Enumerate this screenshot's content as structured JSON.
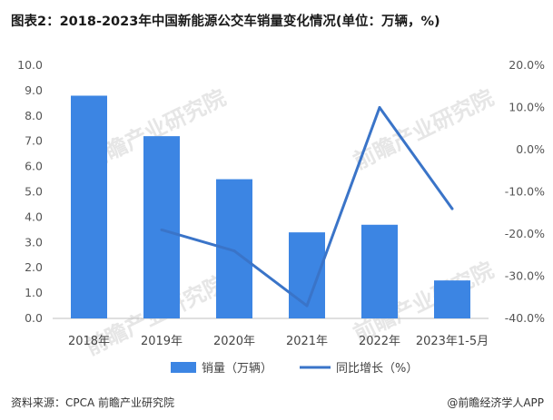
{
  "title": "图表2：2018-2023年中国新能源公交车销量变化情况(单位：万辆，%)",
  "source": "资料来源：CPCA 前瞻产业研究院",
  "brand": "@前瞻经济学人APP",
  "watermark": "前瞻产业研究院",
  "colors": {
    "bar": "#3C85E3",
    "line": "#3A74C8"
  },
  "chart_data": {
    "type": "bar+line",
    "title": "图表2：2018-2023年中国新能源公交车销量变化情况(单位：万辆，%)",
    "categories": [
      "2018年",
      "2019年",
      "2020年",
      "2021年",
      "2022年",
      "2023年1-5月"
    ],
    "series": [
      {
        "name": "销量（万辆）",
        "type": "bar",
        "axis": "left",
        "values": [
          8.8,
          7.2,
          5.5,
          3.4,
          3.7,
          1.5
        ]
      },
      {
        "name": "同比增长（%）",
        "type": "line",
        "axis": "right",
        "values": [
          null,
          -19.0,
          -24.0,
          -37.0,
          10.0,
          -14.0
        ]
      }
    ],
    "y_left": {
      "min": 0,
      "max": 10,
      "step": 1,
      "ticks": [
        "0.0",
        "1.0",
        "2.0",
        "3.0",
        "4.0",
        "5.0",
        "6.0",
        "7.0",
        "8.0",
        "9.0",
        "10.0"
      ]
    },
    "y_right": {
      "min": -40,
      "max": 20,
      "step": 10,
      "ticks": [
        "-40.0%",
        "-30.0%",
        "-20.0%",
        "-10.0%",
        "0.0%",
        "10.0%",
        "20.0%"
      ]
    },
    "legend": {
      "position": "bottom",
      "labels": [
        "销量（万辆）",
        "同比增长（%）"
      ]
    }
  }
}
